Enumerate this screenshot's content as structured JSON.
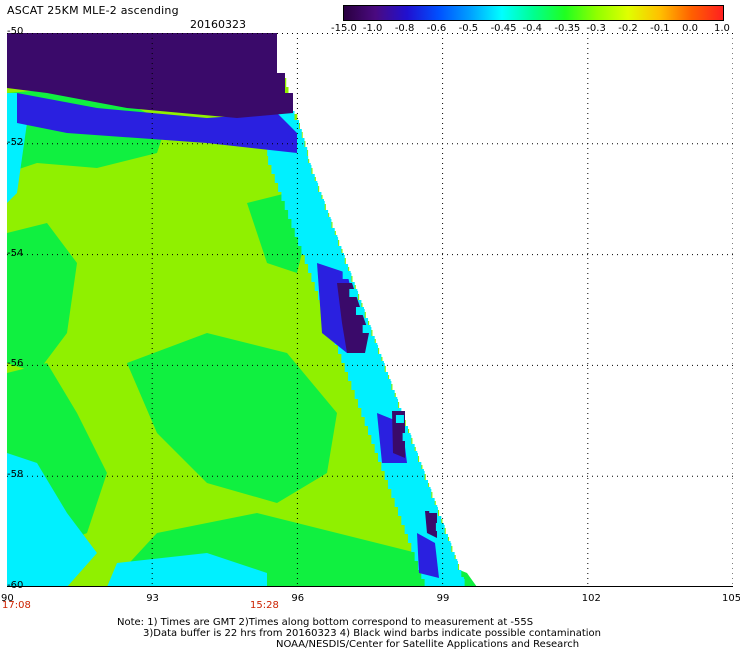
{
  "header": {
    "title": "ASCAT 25KM MLE-2 ascending",
    "date": "20160323"
  },
  "colorbar": {
    "labels": [
      "-15.0",
      "-1.0",
      "-0.8",
      "-0.6",
      "-0.5",
      "-0.45",
      "-0.4",
      "-0.35",
      "-0.3",
      "-0.2",
      "-0.1",
      "0.0",
      "1.0"
    ],
    "colors": [
      "#2a0040",
      "#4a0a80",
      "#2010d0",
      "#0050ff",
      "#00a0ff",
      "#00ffff",
      "#00ff90",
      "#20ff20",
      "#90ff00",
      "#e0ff00",
      "#ffc000",
      "#ff6000",
      "#ff2020"
    ]
  },
  "axes": {
    "x_ticks": [
      "90",
      "93",
      "96",
      "99",
      "102",
      "105"
    ],
    "y_ticks": [
      "-50",
      "-52",
      "-54",
      "-56",
      "-58",
      "-60"
    ],
    "x_range": [
      90,
      105
    ],
    "y_range": [
      -50,
      -60
    ],
    "grid": true
  },
  "time_labels": [
    "17:08",
    "15:28"
  ],
  "footer": {
    "note_line1": "Note: 1) Times are GMT 2)Times along bottom correspond to measurement at -55S",
    "note_line2": "3)Data buffer is 22 hrs from 20160323 4) Black wind barbs indicate possible contamination",
    "note_line3": "NOAA/NESDIS/Center for Satellite Applications and Research"
  },
  "swath": {
    "dominant_value": "-0.3",
    "band_colors": {
      "purple": "#3a0a6a",
      "blue": "#2a20e0",
      "cyan": "#00f0ff",
      "green": "#10f040",
      "yellowgreen": "#90f000"
    }
  }
}
